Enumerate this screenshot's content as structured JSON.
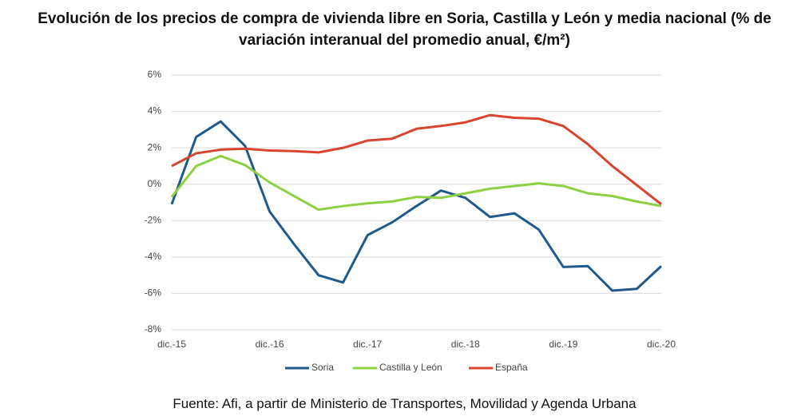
{
  "chart_data": {
    "type": "line",
    "title": "Evolución de los precios de compra de vivienda libre en Soria, Castilla y León y media nacional (% de variación interanual del promedio anual, €/m²)",
    "source": "Fuente: Afi, a partir de Ministerio de Transportes, Movilidad y Agenda Urbana",
    "categories": [
      "dic.-15",
      null,
      null,
      null,
      "dic.-16",
      null,
      null,
      null,
      "dic.-17",
      null,
      null,
      null,
      "dic.-18",
      null,
      null,
      null,
      "dic.-19",
      null,
      null,
      null,
      "dic.-20"
    ],
    "series": [
      {
        "name": "Soria",
        "color": "#1f5a8c",
        "values": [
          -1.1,
          2.6,
          3.45,
          2.1,
          -1.5,
          -3.3,
          -5.0,
          -5.4,
          -2.8,
          -2.1,
          -1.2,
          -0.35,
          -0.75,
          -1.8,
          -1.6,
          -2.5,
          -4.55,
          -4.5,
          -5.85,
          -5.75,
          -4.5
        ]
      },
      {
        "name": "Castilla y León",
        "color": "#8dd142",
        "values": [
          -0.7,
          1.0,
          1.55,
          1.05,
          0.1,
          -0.65,
          -1.4,
          -1.2,
          -1.05,
          -0.95,
          -0.7,
          -0.75,
          -0.5,
          -0.25,
          -0.1,
          0.05,
          -0.1,
          -0.5,
          -0.65,
          -0.95,
          -1.2
        ]
      },
      {
        "name": "España",
        "color": "#d9442f",
        "values": [
          1.0,
          1.7,
          1.9,
          1.95,
          1.85,
          1.82,
          1.75,
          2.0,
          2.4,
          2.5,
          3.05,
          3.2,
          3.4,
          3.8,
          3.65,
          3.6,
          3.2,
          2.2,
          1.0,
          -0.05,
          -1.1
        ]
      }
    ],
    "ylim": [
      -8,
      6
    ],
    "yticks": [
      {
        "value": -8,
        "label": "-8%"
      },
      {
        "value": -6,
        "label": "-6%"
      },
      {
        "value": -4,
        "label": "-4%"
      },
      {
        "value": -2,
        "label": "-2%"
      },
      {
        "value": 0,
        "label": "0%"
      },
      {
        "value": 2,
        "label": "2%"
      },
      {
        "value": 4,
        "label": "4%"
      },
      {
        "value": 6,
        "label": "6%"
      }
    ],
    "grid": true,
    "legend": "bottom"
  }
}
